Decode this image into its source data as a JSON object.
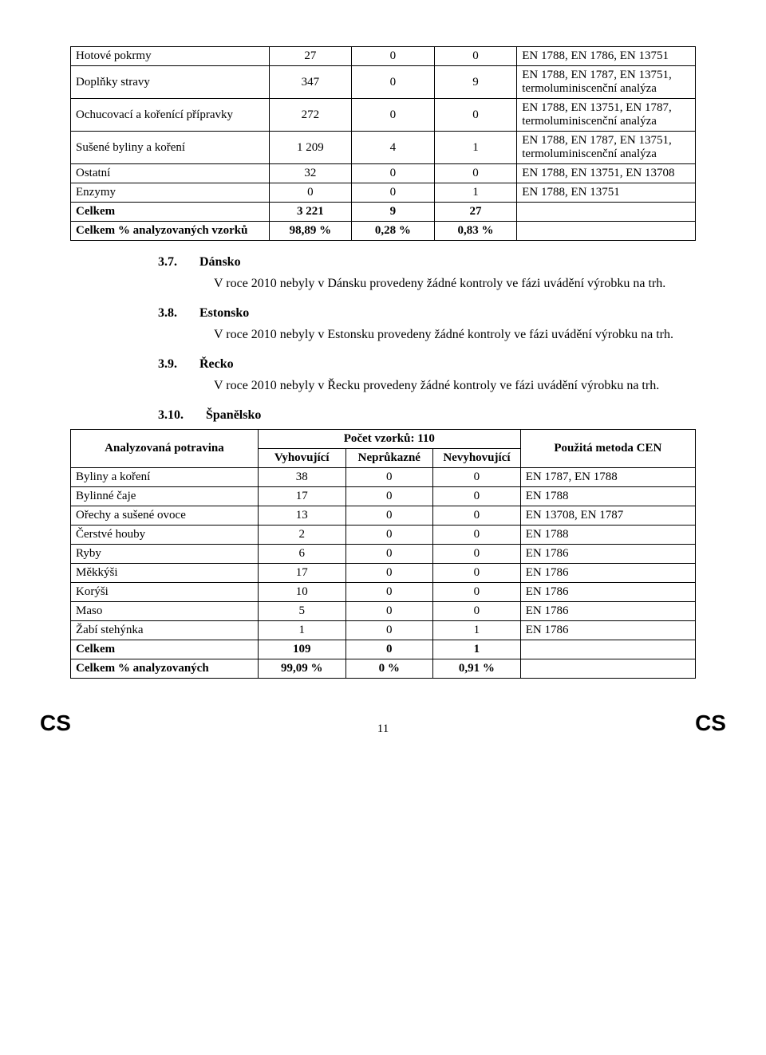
{
  "table1": {
    "rows": [
      {
        "label": "Hotové pokrmy",
        "v1": "27",
        "v2": "0",
        "v3": "0",
        "method": "EN 1788, EN 1786, EN 13751"
      },
      {
        "label": "Doplňky stravy",
        "v1": "347",
        "v2": "0",
        "v3": "9",
        "method": "EN 1788, EN 1787, EN 13751, termoluminiscenční analýza"
      },
      {
        "label": "Ochucovací a kořenící přípravky",
        "v1": "272",
        "v2": "0",
        "v3": "0",
        "method": "EN 1788, EN 13751, EN 1787, termoluminiscenční analýza"
      },
      {
        "label": "Sušené byliny a koření",
        "v1": "1 209",
        "v2": "4",
        "v3": "1",
        "method": "EN 1788, EN 1787, EN 13751, termoluminiscenční analýza"
      },
      {
        "label": "Ostatní",
        "v1": "32",
        "v2": "0",
        "v3": "0",
        "method": "EN 1788, EN 13751, EN 13708"
      },
      {
        "label": "Enzymy",
        "v1": "0",
        "v2": "0",
        "v3": "1",
        "method": "EN 1788, EN 13751"
      }
    ],
    "total_label": "Celkem",
    "total_v1": "3 221",
    "total_v2": "9",
    "total_v3": "27",
    "pct_label": "Celkem % analyzovaných vzorků",
    "pct_v1": "98,89 %",
    "pct_v2": "0,28 %",
    "pct_v3": "0,83 %"
  },
  "sections": {
    "s37_num": "3.7.",
    "s37_title": "Dánsko",
    "s37_text": "V roce 2010 nebyly v Dánsku provedeny žádné kontroly ve fázi uvádění výrobku na trh.",
    "s38_num": "3.8.",
    "s38_title": "Estonsko",
    "s38_text": "V roce 2010 nebyly v Estonsku provedeny žádné kontroly ve fázi uvádění výrobku na trh.",
    "s39_num": "3.9.",
    "s39_title": "Řecko",
    "s39_text": "V roce 2010 nebyly v Řecku provedeny žádné kontroly ve fázi uvádění výrobku na trh.",
    "s310_num": "3.10.",
    "s310_title": "Španělsko"
  },
  "table2": {
    "samples_title": "Počet vzorků: 110",
    "h_food": "Analyzovaná potravina",
    "h_ok": "Vyhovující",
    "h_inconcl": "Neprůkazné",
    "h_fail": "Nevyhovující",
    "h_method": "Použitá metoda CEN",
    "rows": [
      {
        "label": "Byliny a koření",
        "v1": "38",
        "v2": "0",
        "v3": "0",
        "method": "EN 1787, EN 1788"
      },
      {
        "label": "Bylinné čaje",
        "v1": "17",
        "v2": "0",
        "v3": "0",
        "method": "EN 1788"
      },
      {
        "label": "Ořechy a sušené ovoce",
        "v1": "13",
        "v2": "0",
        "v3": "0",
        "method": "EN 13708, EN 1787"
      },
      {
        "label": "Čerstvé houby",
        "v1": "2",
        "v2": "0",
        "v3": "0",
        "method": "EN 1788"
      },
      {
        "label": "Ryby",
        "v1": "6",
        "v2": "0",
        "v3": "0",
        "method": "EN 1786"
      },
      {
        "label": "Měkkýši",
        "v1": "17",
        "v2": "0",
        "v3": "0",
        "method": "EN 1786"
      },
      {
        "label": "Korýši",
        "v1": "10",
        "v2": "0",
        "v3": "0",
        "method": "EN 1786"
      },
      {
        "label": "Maso",
        "v1": "5",
        "v2": "0",
        "v3": "0",
        "method": "EN 1786"
      },
      {
        "label": "Žabí stehýnka",
        "v1": "1",
        "v2": "0",
        "v3": "1",
        "method": "EN 1786"
      }
    ],
    "total_label": "Celkem",
    "total_v1": "109",
    "total_v2": "0",
    "total_v3": "1",
    "pct_label": "Celkem % analyzovaných",
    "pct_v1": "99,09 %",
    "pct_v2": "0 %",
    "pct_v3": "0,91 %"
  },
  "footer": {
    "cs": "CS",
    "page": "11"
  }
}
